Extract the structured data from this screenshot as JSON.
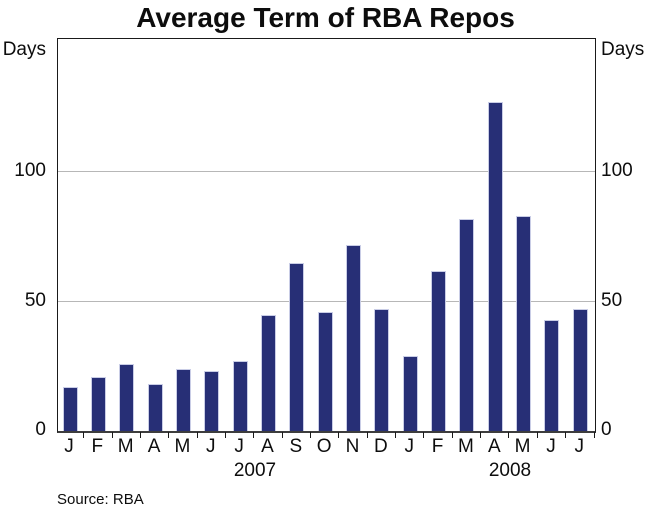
{
  "title": "Average Term of RBA Repos",
  "unit_label_left": "Days",
  "unit_label_right": "Days",
  "year_labels": [
    "2007",
    "2008"
  ],
  "source_note": "Source: RBA",
  "colors": {
    "bar_fill": "#272f76",
    "bar_edge": "#c9cde6",
    "gridline": "#b7b7b7",
    "axis_line": "#1a1a1a",
    "text": "#0d0d0d"
  },
  "chart_data": {
    "type": "bar",
    "title": "Average Term of RBA Repos",
    "ylabel": "Days",
    "categories": [
      "Jan 2007",
      "Feb 2007",
      "Mar 2007",
      "Apr 2007",
      "May 2007",
      "Jun 2007",
      "Jul 2007",
      "Aug 2007",
      "Sep 2007",
      "Oct 2007",
      "Nov 2007",
      "Dec 2007",
      "Jan 2008",
      "Feb 2008",
      "Mar 2008",
      "Apr 2008",
      "May 2008",
      "Jun 2008",
      "Jul 2008"
    ],
    "tick_labels": [
      "J",
      "F",
      "M",
      "A",
      "M",
      "J",
      "J",
      "A",
      "S",
      "O",
      "N",
      "D",
      "J",
      "F",
      "M",
      "A",
      "M",
      "J",
      "J"
    ],
    "values": [
      17,
      21,
      26,
      18,
      24,
      23,
      27,
      45,
      65,
      46,
      72,
      47,
      29,
      62,
      82,
      127,
      83,
      43,
      47
    ],
    "yticks": [
      0,
      50,
      100
    ],
    "ylim": [
      0,
      151.5
    ],
    "grid": "horizontal gridlines at 50 and 100",
    "legend": "none",
    "bar_color": "#272f76"
  }
}
